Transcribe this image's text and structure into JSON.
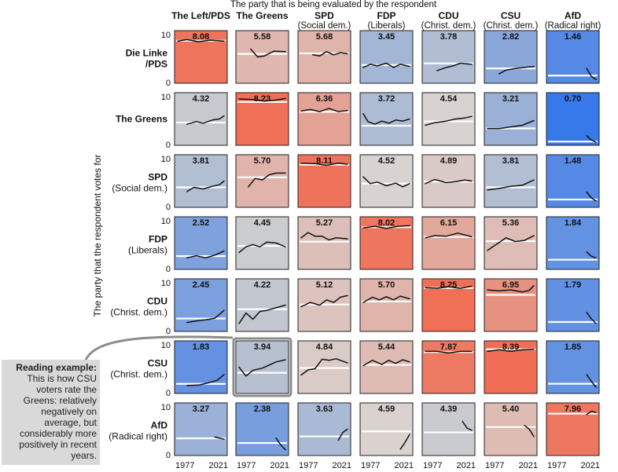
{
  "chart_data": {
    "type": "line",
    "title": "The party that is being evaluated by the respondent",
    "ylabel": "The party that the respondent votes for",
    "ylim": [
      0,
      10
    ],
    "yticks": [
      "0",
      "10"
    ],
    "xticks": [
      "1977",
      "2021"
    ],
    "columns": [
      {
        "name": "The Left/PDS",
        "sub": ""
      },
      {
        "name": "The Greens",
        "sub": ""
      },
      {
        "name": "SPD",
        "sub": "(Social dem.)"
      },
      {
        "name": "FDP",
        "sub": "(Liberals)"
      },
      {
        "name": "CDU",
        "sub": "(Christ. dem.)"
      },
      {
        "name": "CSU",
        "sub": "(Christ. dem.)"
      },
      {
        "name": "AfD",
        "sub": "(Radical right)"
      }
    ],
    "rows": [
      {
        "name": "Die Linke",
        "sub": "/PDS",
        "bold_sub": true
      },
      {
        "name": "The Greens",
        "sub": "",
        "bold_sub": false
      },
      {
        "name": "SPD",
        "sub": "(Social dem.)",
        "bold_sub": false
      },
      {
        "name": "FDP",
        "sub": "(Liberals)",
        "bold_sub": false
      },
      {
        "name": "CDU",
        "sub": "(Christ. dem.)",
        "bold_sub": false
      },
      {
        "name": "CSU",
        "sub": "(Christ. dem.)",
        "bold_sub": false
      },
      {
        "name": "AfD",
        "sub": "(Radical right)",
        "bold_sub": false
      }
    ],
    "means": [
      [
        "8.08",
        "5.58",
        "5.68",
        "3.45",
        "3.78",
        "2.82",
        "1.46"
      ],
      [
        "4.32",
        "8.23",
        "6.36",
        "3.72",
        "4.54",
        "3.21",
        "0.70"
      ],
      [
        "3.81",
        "5.70",
        "8.11",
        "4.52",
        "4.89",
        "3.81",
        "1.48"
      ],
      [
        "2.52",
        "4.45",
        "5.27",
        "8.02",
        "6.15",
        "5.36",
        "1.84"
      ],
      [
        "2.45",
        "4.22",
        "5.12",
        "5.70",
        "8.25",
        "6.95",
        "1.79"
      ],
      [
        "1.83",
        "3.94",
        "4.84",
        "5.44",
        "7.87",
        "8.39",
        "1.85"
      ],
      [
        "3.27",
        "2.38",
        "3.63",
        "4.59",
        "4.39",
        "5.40",
        "7.96"
      ]
    ],
    "trend_x_years": [
      1977,
      2021
    ],
    "trends": [
      [
        [
          [
            0,
            8.0
          ],
          [
            0.2,
            8.3
          ],
          [
            0.45,
            7.9
          ],
          [
            0.7,
            8.2
          ],
          [
            1,
            8.0
          ]
        ],
        [
          [
            0.25,
            6.5
          ],
          [
            0.4,
            5.0
          ],
          [
            0.55,
            5.2
          ],
          [
            0.75,
            6.1
          ],
          [
            1,
            6.0
          ]
        ],
        [
          [
            0.25,
            5.4
          ],
          [
            0.4,
            5.2
          ],
          [
            0.55,
            6.0
          ],
          [
            0.7,
            5.4
          ],
          [
            0.85,
            5.8
          ],
          [
            1,
            5.6
          ]
        ],
        [
          [
            0,
            3.0
          ],
          [
            0.15,
            3.6
          ],
          [
            0.3,
            3.3
          ],
          [
            0.5,
            3.8
          ],
          [
            0.65,
            3.0
          ],
          [
            0.8,
            3.6
          ],
          [
            1,
            3.2
          ]
        ],
        [
          [
            0.25,
            2.4
          ],
          [
            0.45,
            3.0
          ],
          [
            0.6,
            3.3
          ],
          [
            0.75,
            3.8
          ],
          [
            1,
            3.6
          ]
        ],
        [
          [
            0.25,
            1.8
          ],
          [
            0.4,
            2.5
          ],
          [
            0.6,
            2.8
          ],
          [
            0.8,
            3.0
          ],
          [
            1,
            3.2
          ]
        ],
        [
          [
            0.8,
            2.8
          ],
          [
            0.9,
            1.3
          ],
          [
            1,
            0.7
          ]
        ]
      ],
      [
        [
          [
            0.2,
            4.0
          ],
          [
            0.4,
            4.5
          ],
          [
            0.55,
            4.2
          ],
          [
            0.75,
            4.8
          ],
          [
            0.9,
            5.0
          ],
          [
            1,
            5.6
          ]
        ],
        [
          [
            0,
            8.8
          ],
          [
            0.3,
            8.7
          ],
          [
            0.55,
            8.4
          ],
          [
            0.8,
            8.6
          ],
          [
            1,
            8.9
          ]
        ],
        [
          [
            0,
            6.5
          ],
          [
            0.2,
            6.8
          ],
          [
            0.4,
            6.4
          ],
          [
            0.6,
            7.0
          ],
          [
            0.8,
            6.4
          ],
          [
            1,
            6.6
          ]
        ],
        [
          [
            0,
            6.0
          ],
          [
            0.1,
            4.5
          ],
          [
            0.25,
            4.0
          ],
          [
            0.4,
            4.6
          ],
          [
            0.55,
            4.2
          ],
          [
            0.7,
            4.8
          ],
          [
            0.85,
            4.6
          ],
          [
            1,
            5.0
          ]
        ],
        [
          [
            0,
            3.8
          ],
          [
            0.2,
            4.3
          ],
          [
            0.45,
            4.6
          ],
          [
            0.65,
            5.0
          ],
          [
            0.85,
            5.2
          ],
          [
            1,
            5.5
          ]
        ],
        [
          [
            0,
            3.2
          ],
          [
            0.25,
            3.2
          ],
          [
            0.5,
            3.5
          ],
          [
            0.75,
            3.8
          ],
          [
            1,
            4.7
          ]
        ],
        [
          [
            0.8,
            1.8
          ],
          [
            0.9,
            1.0
          ],
          [
            1,
            0.6
          ]
        ]
      ],
      [
        [
          [
            0.2,
            3.0
          ],
          [
            0.35,
            3.8
          ],
          [
            0.55,
            3.5
          ],
          [
            0.75,
            4.0
          ],
          [
            0.9,
            4.3
          ],
          [
            1,
            5.0
          ]
        ],
        [
          [
            0.2,
            3.9
          ],
          [
            0.35,
            5.5
          ],
          [
            0.5,
            5.2
          ],
          [
            0.65,
            6.2
          ],
          [
            0.8,
            6.5
          ],
          [
            1,
            6.5
          ]
        ],
        [
          [
            0,
            8.4
          ],
          [
            0.3,
            8.3
          ],
          [
            0.55,
            8.0
          ],
          [
            0.8,
            8.4
          ],
          [
            1,
            8.2
          ]
        ],
        [
          [
            0,
            5.8
          ],
          [
            0.15,
            4.5
          ],
          [
            0.3,
            4.8
          ],
          [
            0.5,
            4.1
          ],
          [
            0.7,
            4.6
          ],
          [
            0.85,
            3.9
          ],
          [
            1,
            4.5
          ]
        ],
        [
          [
            0,
            4.5
          ],
          [
            0.2,
            5.3
          ],
          [
            0.45,
            4.7
          ],
          [
            0.65,
            4.9
          ],
          [
            0.85,
            5.2
          ],
          [
            1,
            5.0
          ]
        ],
        [
          [
            0,
            3.3
          ],
          [
            0.25,
            3.6
          ],
          [
            0.5,
            4.0
          ],
          [
            0.75,
            4.2
          ],
          [
            1,
            5.2
          ]
        ],
        [
          [
            0.8,
            2.9
          ],
          [
            0.9,
            1.8
          ],
          [
            1,
            1.2
          ]
        ]
      ],
      [
        [
          [
            0.2,
            2.2
          ],
          [
            0.4,
            2.6
          ],
          [
            0.6,
            2.2
          ],
          [
            0.8,
            2.7
          ],
          [
            1,
            3.5
          ]
        ],
        [
          [
            0,
            3.2
          ],
          [
            0.15,
            4.3
          ],
          [
            0.3,
            4.7
          ],
          [
            0.45,
            4.3
          ],
          [
            0.6,
            5.2
          ],
          [
            0.8,
            5.0
          ],
          [
            1,
            4.3
          ]
        ],
        [
          [
            0,
            6.0
          ],
          [
            0.15,
            7.0
          ],
          [
            0.3,
            6.3
          ],
          [
            0.45,
            6.3
          ],
          [
            0.6,
            5.6
          ],
          [
            0.75,
            6.0
          ],
          [
            1,
            5.8
          ]
        ],
        [
          [
            0,
            7.9
          ],
          [
            0.25,
            8.2
          ],
          [
            0.5,
            7.8
          ],
          [
            0.75,
            8.2
          ],
          [
            1,
            8.3
          ]
        ],
        [
          [
            0,
            6.0
          ],
          [
            0.2,
            6.4
          ],
          [
            0.45,
            6.3
          ],
          [
            0.7,
            6.9
          ],
          [
            1,
            6.2
          ]
        ],
        [
          [
            0,
            3.6
          ],
          [
            0.2,
            4.8
          ],
          [
            0.4,
            6.0
          ],
          [
            0.6,
            5.3
          ],
          [
            0.8,
            5.5
          ],
          [
            1,
            6.4
          ]
        ],
        [
          [
            0.8,
            3.3
          ],
          [
            0.9,
            2.5
          ],
          [
            1,
            2.2
          ]
        ]
      ],
      [
        [
          [
            0.2,
            1.7
          ],
          [
            0.4,
            2.0
          ],
          [
            0.6,
            2.2
          ],
          [
            0.8,
            2.5
          ],
          [
            1,
            4.0
          ]
        ],
        [
          [
            0,
            1.5
          ],
          [
            0.15,
            3.5
          ],
          [
            0.3,
            2.3
          ],
          [
            0.45,
            3.8
          ],
          [
            0.6,
            4.0
          ],
          [
            0.8,
            4.5
          ],
          [
            1,
            5.0
          ]
        ],
        [
          [
            0,
            4.7
          ],
          [
            0.2,
            5.5
          ],
          [
            0.4,
            5.0
          ],
          [
            0.55,
            6.0
          ],
          [
            0.7,
            5.5
          ],
          [
            0.85,
            6.5
          ],
          [
            1,
            6.8
          ]
        ],
        [
          [
            0,
            5.5
          ],
          [
            0.2,
            6.5
          ],
          [
            0.35,
            6.0
          ],
          [
            0.5,
            6.6
          ],
          [
            0.65,
            6.0
          ],
          [
            0.8,
            6.7
          ],
          [
            1,
            6.2
          ]
        ],
        [
          [
            0,
            8.3
          ],
          [
            0.25,
            8.2
          ],
          [
            0.5,
            8.5
          ],
          [
            0.75,
            8.2
          ],
          [
            1,
            8.6
          ]
        ],
        [
          [
            0,
            7.9
          ],
          [
            0.25,
            7.7
          ],
          [
            0.5,
            7.9
          ],
          [
            0.75,
            7.5
          ],
          [
            0.9,
            7.8
          ],
          [
            1,
            8.7
          ]
        ],
        [
          [
            0.8,
            3.6
          ],
          [
            0.9,
            2.4
          ],
          [
            1,
            1.5
          ]
        ]
      ],
      [
        [
          [
            0.2,
            1.5
          ],
          [
            0.45,
            1.6
          ],
          [
            0.65,
            2.0
          ],
          [
            0.85,
            2.5
          ],
          [
            1,
            3.6
          ]
        ],
        [
          [
            0,
            5.0
          ],
          [
            0.15,
            3.3
          ],
          [
            0.3,
            4.4
          ],
          [
            0.5,
            4.8
          ],
          [
            0.65,
            5.4
          ],
          [
            0.8,
            6.0
          ],
          [
            1,
            6.4
          ]
        ],
        [
          [
            0,
            3.5
          ],
          [
            0.15,
            4.5
          ],
          [
            0.3,
            4.7
          ],
          [
            0.45,
            6.5
          ],
          [
            0.6,
            6.3
          ],
          [
            0.75,
            6.6
          ],
          [
            1,
            5.8
          ]
        ],
        [
          [
            0,
            5.3
          ],
          [
            0.2,
            6.3
          ],
          [
            0.4,
            5.5
          ],
          [
            0.55,
            6.3
          ],
          [
            0.7,
            5.7
          ],
          [
            0.85,
            6.4
          ],
          [
            1,
            6.0
          ]
        ],
        [
          [
            0,
            8.0
          ],
          [
            0.25,
            8.0
          ],
          [
            0.5,
            7.7
          ],
          [
            0.75,
            8.0
          ],
          [
            1,
            8.0
          ]
        ],
        [
          [
            0,
            8.0
          ],
          [
            0.25,
            8.3
          ],
          [
            0.5,
            8.0
          ],
          [
            0.75,
            8.3
          ],
          [
            1,
            8.4
          ]
        ],
        [
          [
            0.8,
            3.6
          ],
          [
            0.9,
            2.3
          ],
          [
            1,
            1.2
          ]
        ]
      ],
      [
        [
          [
            0.8,
            3.5
          ],
          [
            1,
            3.1
          ]
        ],
        [
          [
            0.8,
            3.3
          ],
          [
            0.9,
            2.0
          ],
          [
            1,
            1.1
          ]
        ],
        [
          [
            0.8,
            2.9
          ],
          [
            0.9,
            4.4
          ],
          [
            1,
            5.0
          ]
        ],
        [
          [
            0.8,
            1.2
          ],
          [
            0.9,
            2.5
          ],
          [
            1,
            4.0
          ]
        ],
        [
          [
            0.8,
            6.5
          ],
          [
            0.9,
            5.2
          ],
          [
            1,
            4.8
          ]
        ],
        [
          [
            0.8,
            5.7
          ],
          [
            0.9,
            5.0
          ],
          [
            1,
            3.6
          ]
        ],
        [
          [
            0.8,
            7.8
          ],
          [
            0.9,
            8.4
          ],
          [
            1,
            8.2
          ]
        ]
      ]
    ]
  },
  "note": {
    "lead": "Reading example:",
    "body": "This is how CSU voters rate the Greens: relatively negatively on average, but considerably more positively in recent years."
  }
}
